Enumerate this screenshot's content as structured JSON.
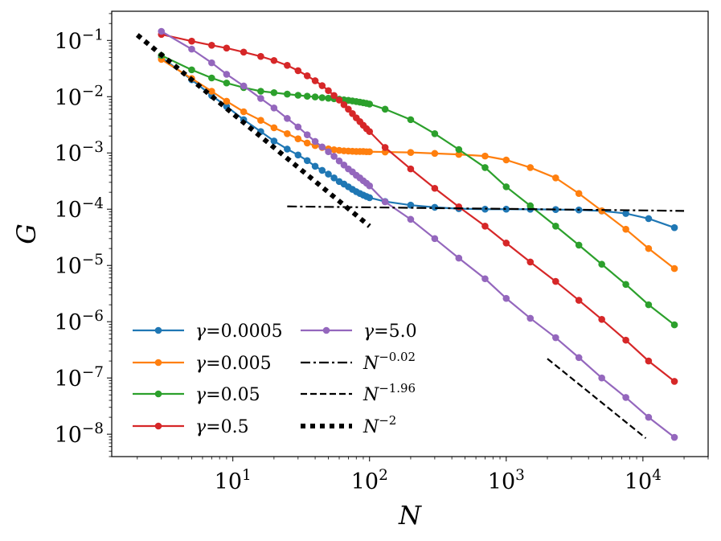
{
  "chart_data": {
    "type": "line",
    "x_scale": "log",
    "y_scale": "log",
    "xlabel": "N",
    "ylabel": "G",
    "xlim": [
      1.3,
      30000
    ],
    "ylim": [
      4e-09,
      0.33
    ],
    "x_ticks": [
      {
        "value": 10,
        "label": "10",
        "exp": "1"
      },
      {
        "value": 100,
        "label": "10",
        "exp": "2"
      },
      {
        "value": 1000,
        "label": "10",
        "exp": "3"
      },
      {
        "value": 10000,
        "label": "10",
        "exp": "4"
      }
    ],
    "y_ticks": [
      {
        "value": 1e-08,
        "label": "10",
        "exp": "−8"
      },
      {
        "value": 1e-07,
        "label": "10",
        "exp": "−7"
      },
      {
        "value": 1e-06,
        "label": "10",
        "exp": "−6"
      },
      {
        "value": 1e-05,
        "label": "10",
        "exp": "−5"
      },
      {
        "value": 0.0001,
        "label": "10",
        "exp": "−4"
      },
      {
        "value": 0.001,
        "label": "10",
        "exp": "−3"
      },
      {
        "value": 0.01,
        "label": "10",
        "exp": "−2"
      },
      {
        "value": 0.1,
        "label": "10",
        "exp": "−1"
      }
    ],
    "legend_position": "lower-left",
    "series": [
      {
        "name": "γ=0.0005",
        "gamma": "0.0005",
        "color": "#1f77b4",
        "style": "line-marker",
        "x": [
          3,
          5,
          7,
          9,
          12,
          16,
          20,
          25,
          30,
          35,
          40,
          45,
          50,
          55,
          60,
          65,
          70,
          75,
          80,
          85,
          90,
          95,
          100,
          130,
          200,
          300,
          450,
          700,
          1000,
          1500,
          2300,
          3400,
          5000,
          7500,
          11000,
          17000
        ],
        "y": [
          0.05,
          0.02,
          0.0105,
          0.0067,
          0.0039,
          0.0024,
          0.00163,
          0.00117,
          0.00092,
          0.00073,
          0.00058,
          0.00049,
          0.00042,
          0.00036,
          0.00031,
          0.00028,
          0.00025,
          0.000225,
          0.000205,
          0.00019,
          0.000178,
          0.000168,
          0.00016,
          0.000137,
          0.000118,
          0.000108,
          0.000102,
          0.0001,
          0.0001,
          9.95e-05,
          9.85e-05,
          9.7e-05,
          9.3e-05,
          8.4e-05,
          6.8e-05,
          4.7e-05
        ]
      },
      {
        "name": "γ=0.005",
        "gamma": "0.005",
        "color": "#ff7f0e",
        "style": "line-marker",
        "x": [
          3,
          5,
          7,
          9,
          12,
          16,
          20,
          25,
          30,
          35,
          40,
          45,
          50,
          55,
          60,
          65,
          70,
          75,
          80,
          85,
          90,
          95,
          100,
          130,
          200,
          300,
          450,
          700,
          1000,
          1500,
          2300,
          3400,
          5000,
          7500,
          11000,
          17000
        ],
        "y": [
          0.046,
          0.021,
          0.0125,
          0.0083,
          0.0054,
          0.0038,
          0.0028,
          0.0022,
          0.00178,
          0.0015,
          0.00135,
          0.00125,
          0.00118,
          0.00114,
          0.00111,
          0.00109,
          0.00108,
          0.00107,
          0.00106,
          0.00106,
          0.00106,
          0.00105,
          0.00105,
          0.00104,
          0.00102,
          0.00098,
          0.00094,
          0.00088,
          0.00075,
          0.00055,
          0.00036,
          0.00019,
          9.35e-05,
          4.4e-05,
          2e-05,
          8.8e-06
        ]
      },
      {
        "name": "γ=0.05",
        "gamma": "0.05",
        "color": "#2ca02c",
        "style": "line-marker",
        "x": [
          3,
          5,
          7,
          9,
          12,
          16,
          20,
          25,
          30,
          35,
          40,
          45,
          50,
          55,
          60,
          65,
          70,
          75,
          80,
          85,
          90,
          95,
          100,
          130,
          200,
          300,
          450,
          700,
          1000,
          1500,
          2300,
          3400,
          5000,
          7500,
          11000,
          17000
        ],
        "y": [
          0.054,
          0.03,
          0.0215,
          0.0175,
          0.0145,
          0.0125,
          0.0118,
          0.0111,
          0.0106,
          0.0102,
          0.0099,
          0.0096,
          0.0094,
          0.0092,
          0.009,
          0.0088,
          0.0086,
          0.0084,
          0.0082,
          0.008,
          0.0078,
          0.0076,
          0.0074,
          0.006,
          0.0039,
          0.0022,
          0.00115,
          0.00055,
          0.00025,
          0.000115,
          5e-05,
          2.3e-05,
          1.05e-05,
          4.6e-06,
          2e-06,
          8.8e-07
        ]
      },
      {
        "name": "γ=0.5",
        "gamma": "0.5",
        "color": "#d62728",
        "style": "line-marker",
        "x": [
          3,
          5,
          7,
          9,
          12,
          16,
          20,
          25,
          30,
          35,
          40,
          45,
          50,
          55,
          60,
          65,
          70,
          75,
          80,
          85,
          90,
          95,
          100,
          130,
          200,
          300,
          450,
          700,
          1000,
          1500,
          2300,
          3400,
          5000,
          7500,
          11000,
          17000
        ],
        "y": [
          0.128,
          0.097,
          0.082,
          0.073,
          0.062,
          0.052,
          0.044,
          0.036,
          0.029,
          0.0235,
          0.0192,
          0.0157,
          0.0128,
          0.0105,
          0.0087,
          0.0072,
          0.006,
          0.005,
          0.0042,
          0.0036,
          0.0031,
          0.0027,
          0.0024,
          0.00125,
          0.00052,
          0.000235,
          0.00011,
          5e-05,
          2.5e-05,
          1.15e-05,
          5.2e-06,
          2.4e-06,
          1.1e-06,
          4.7e-07,
          2e-07,
          8.7e-08
        ]
      },
      {
        "name": "γ=5.0",
        "gamma": "5.0",
        "color": "#9467bd",
        "style": "line-marker",
        "x": [
          3,
          5,
          7,
          9,
          12,
          16,
          20,
          25,
          30,
          35,
          40,
          45,
          50,
          55,
          60,
          65,
          70,
          75,
          80,
          85,
          90,
          95,
          100,
          130,
          200,
          300,
          450,
          700,
          1000,
          1500,
          2300,
          3400,
          5000,
          7500,
          11000,
          17000
        ],
        "y": [
          0.145,
          0.07,
          0.04,
          0.025,
          0.0155,
          0.0093,
          0.0063,
          0.0041,
          0.0029,
          0.0021,
          0.0016,
          0.00128,
          0.00105,
          0.00087,
          0.00072,
          0.00061,
          0.00052,
          0.00046,
          0.0004,
          0.00036,
          0.00032,
          0.00029,
          0.00026,
          0.000135,
          6.6e-05,
          3e-05,
          1.35e-05,
          5.8e-06,
          2.6e-06,
          1.15e-06,
          5.2e-07,
          2.3e-07,
          1e-07,
          4.5e-08,
          2e-08,
          8.8e-09
        ]
      },
      {
        "name": "N^{-0.02}",
        "base": "N",
        "exp": "−0.02",
        "color": "#000000",
        "style": "dashdot",
        "x": [
          25,
          20000
        ],
        "y": [
          0.000112,
          9.33e-05
        ]
      },
      {
        "name": "N^{-1.96}",
        "base": "N",
        "exp": "−1.96",
        "color": "#000000",
        "style": "dashed",
        "x": [
          2000,
          10500
        ],
        "y": [
          2.2e-07,
          8.5e-09
        ]
      },
      {
        "name": "N^{-2}",
        "base": "N",
        "exp": "−2",
        "color": "#000000",
        "style": "dotted",
        "x": [
          2,
          100
        ],
        "y": [
          0.125,
          5e-05
        ]
      }
    ]
  }
}
